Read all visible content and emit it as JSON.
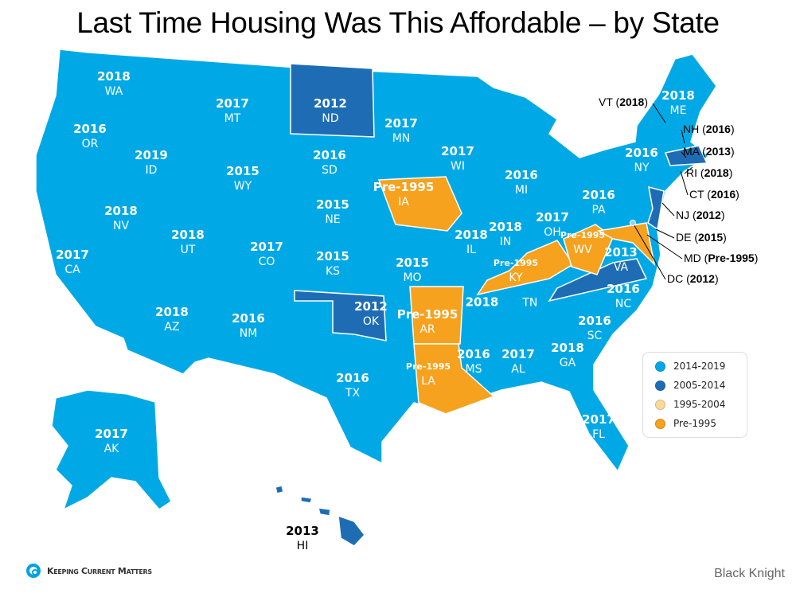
{
  "title": "Last Time Housing Was This Affordable – by State",
  "colors": {
    "2014-2019": "#00a9e6",
    "2005-2014": "#1e6db4",
    "1995-2004": "#fcd89b",
    "Pre-1995": "#f6a21e"
  },
  "legend": [
    {
      "label": "2014-2019",
      "color": "#00a9e6"
    },
    {
      "label": "2005-2014",
      "color": "#1e6db4"
    },
    {
      "label": "1995-2004",
      "color": "#fcd89b"
    },
    {
      "label": "Pre-1995",
      "color": "#f6a21e"
    }
  ],
  "states": [
    {
      "abbr": "WA",
      "year": "2018"
    },
    {
      "abbr": "OR",
      "year": "2016"
    },
    {
      "abbr": "ID",
      "year": "2019"
    },
    {
      "abbr": "MT",
      "year": "2017"
    },
    {
      "abbr": "ND",
      "year": "2012"
    },
    {
      "abbr": "MN",
      "year": "2017"
    },
    {
      "abbr": "WI",
      "year": "2017"
    },
    {
      "abbr": "MI",
      "year": "2016"
    },
    {
      "abbr": "SD",
      "year": "2016"
    },
    {
      "abbr": "WY",
      "year": "2015"
    },
    {
      "abbr": "NE",
      "year": "2015"
    },
    {
      "abbr": "IA",
      "year": "Pre-1995"
    },
    {
      "abbr": "IL",
      "year": "2018"
    },
    {
      "abbr": "IN",
      "year": "2018"
    },
    {
      "abbr": "OH",
      "year": "2017"
    },
    {
      "abbr": "PA",
      "year": "2016"
    },
    {
      "abbr": "NY",
      "year": "2016"
    },
    {
      "abbr": "NV",
      "year": "2018"
    },
    {
      "abbr": "UT",
      "year": "2018"
    },
    {
      "abbr": "CO",
      "year": "2017"
    },
    {
      "abbr": "KS",
      "year": "2015"
    },
    {
      "abbr": "MO",
      "year": "2015"
    },
    {
      "abbr": "KY",
      "year": "Pre-1995"
    },
    {
      "abbr": "WV",
      "year": "Pre-1995"
    },
    {
      "abbr": "VA",
      "year": "2013"
    },
    {
      "abbr": "CA",
      "year": "2017"
    },
    {
      "abbr": "AZ",
      "year": "2018"
    },
    {
      "abbr": "NM",
      "year": "2016"
    },
    {
      "abbr": "OK",
      "year": "2012"
    },
    {
      "abbr": "AR",
      "year": "Pre-1995"
    },
    {
      "abbr": "TN",
      "year": "2018"
    },
    {
      "abbr": "NC",
      "year": "2016"
    },
    {
      "abbr": "SC",
      "year": "2016"
    },
    {
      "abbr": "MS",
      "year": "2016"
    },
    {
      "abbr": "AL",
      "year": "2017"
    },
    {
      "abbr": "GA",
      "year": "2018"
    },
    {
      "abbr": "LA",
      "year": "Pre-1995"
    },
    {
      "abbr": "TX",
      "year": "2016"
    },
    {
      "abbr": "FL",
      "year": "2017"
    },
    {
      "abbr": "AK",
      "year": "2017"
    },
    {
      "abbr": "HI",
      "year": "2013"
    },
    {
      "abbr": "ME",
      "year": "2018"
    }
  ],
  "callouts": [
    {
      "abbr": "VT",
      "year": "2018"
    },
    {
      "abbr": "NH",
      "year": "2016"
    },
    {
      "abbr": "MA",
      "year": "2013"
    },
    {
      "abbr": "RI",
      "year": "2018"
    },
    {
      "abbr": "CT",
      "year": "2016"
    },
    {
      "abbr": "NJ",
      "year": "2012"
    },
    {
      "abbr": "DE",
      "year": "2015"
    },
    {
      "abbr": "MD",
      "year": "Pre-1995"
    },
    {
      "abbr": "DC",
      "year": "2012"
    }
  ],
  "footer": {
    "brand": "Keeping Current Matters",
    "source": "Black Knight"
  }
}
